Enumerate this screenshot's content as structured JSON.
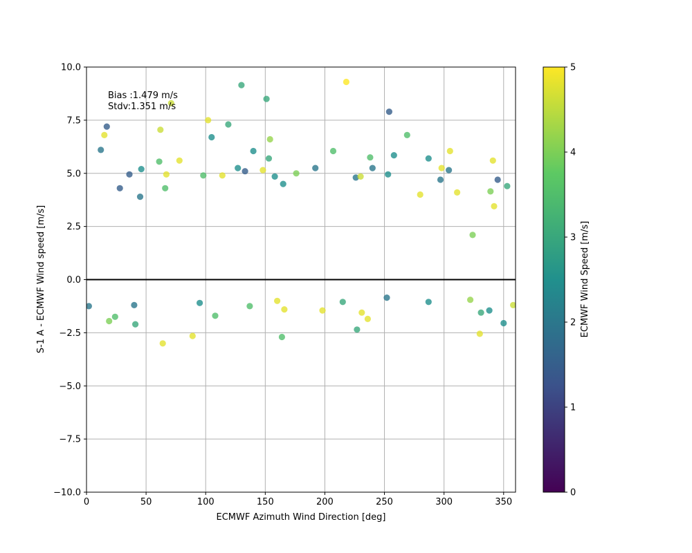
{
  "chart_data": {
    "type": "scatter",
    "title": "",
    "xlabel": "ECMWF Azimuth Wind Direction [deg]",
    "ylabel": "S-1 A - ECMWF Wind speed [m/s]",
    "xlim": [
      0,
      360
    ],
    "ylim": [
      -10,
      10
    ],
    "x_ticks": [
      "0",
      "50",
      "100",
      "150",
      "200",
      "250",
      "300",
      "350"
    ],
    "y_ticks": [
      "−10.0",
      "−7.5",
      "−5.0",
      "−2.5",
      "0.0",
      "2.5",
      "5.0",
      "7.5",
      "10.0"
    ],
    "grid": true,
    "reference_line_y": 0,
    "annotation": {
      "bias": "Bias :1.479 m/s",
      "stdv": "Stdv:1.351 m/s"
    },
    "colorbar": {
      "label": "ECMWF Wind Speed [m/s]",
      "colormap": "viridis",
      "range": [
        0,
        5
      ],
      "ticks": [
        "0",
        "1",
        "2",
        "3",
        "4",
        "5"
      ],
      "stops": [
        "#440154",
        "#3b528b",
        "#21908d",
        "#5dc963",
        "#fde725"
      ]
    },
    "points": [
      [
        130,
        9.15,
        3.0
      ],
      [
        151,
        8.5,
        3.0
      ],
      [
        218,
        9.3,
        5.0
      ],
      [
        254,
        7.9,
        1.5
      ],
      [
        71,
        8.3,
        4.6
      ],
      [
        17,
        7.2,
        1.5
      ],
      [
        12,
        6.1,
        2.0
      ],
      [
        15,
        6.8,
        4.8
      ],
      [
        62,
        7.05,
        4.6
      ],
      [
        102,
        7.5,
        4.8
      ],
      [
        119,
        7.3,
        3.0
      ],
      [
        105,
        6.7,
        2.5
      ],
      [
        154,
        6.6,
        4.2
      ],
      [
        140,
        6.05,
        2.5
      ],
      [
        207,
        6.05,
        3.5
      ],
      [
        269,
        6.8,
        3.5
      ],
      [
        258,
        5.85,
        2.5
      ],
      [
        305,
        6.05,
        4.8
      ],
      [
        287,
        5.7,
        2.5
      ],
      [
        238,
        5.75,
        3.5
      ],
      [
        153,
        5.7,
        3.0
      ],
      [
        61,
        5.55,
        3.5
      ],
      [
        78,
        5.6,
        4.8
      ],
      [
        127,
        5.25,
        2.5
      ],
      [
        133,
        5.1,
        1.5
      ],
      [
        192,
        5.25,
        2.0
      ],
      [
        240,
        5.25,
        2.0
      ],
      [
        253,
        4.95,
        2.5
      ],
      [
        298,
        5.25,
        4.8
      ],
      [
        304,
        5.15,
        2.0
      ],
      [
        341,
        5.6,
        4.8
      ],
      [
        345,
        4.7,
        1.5
      ],
      [
        353,
        4.4,
        3.0
      ],
      [
        36,
        4.95,
        1.5
      ],
      [
        46,
        5.2,
        2.5
      ],
      [
        28,
        4.3,
        1.5
      ],
      [
        45,
        3.9,
        2.0
      ],
      [
        66,
        4.3,
        3.5
      ],
      [
        67,
        4.95,
        4.8
      ],
      [
        98,
        4.9,
        3.5
      ],
      [
        114,
        4.9,
        4.8
      ],
      [
        148,
        5.15,
        4.8
      ],
      [
        158,
        4.85,
        2.5
      ],
      [
        165,
        4.5,
        2.5
      ],
      [
        176,
        5.0,
        4.0
      ],
      [
        226,
        4.8,
        2.0
      ],
      [
        230,
        4.85,
        4.6
      ],
      [
        280,
        4.0,
        4.8
      ],
      [
        297,
        4.7,
        2.0
      ],
      [
        311,
        4.1,
        4.8
      ],
      [
        324,
        2.1,
        4.0
      ],
      [
        339,
        4.15,
        4.0
      ],
      [
        342,
        3.45,
        4.8
      ],
      [
        64,
        -3.0,
        4.8
      ],
      [
        89,
        -2.65,
        4.8
      ],
      [
        164,
        -2.7,
        3.5
      ],
      [
        227,
        -2.35,
        3.0
      ],
      [
        330,
        -2.55,
        4.8
      ],
      [
        41,
        -2.1,
        3.0
      ],
      [
        19,
        -1.95,
        4.0
      ],
      [
        24,
        -1.75,
        3.5
      ],
      [
        2,
        -1.25,
        2.0
      ],
      [
        108,
        -1.7,
        3.5
      ],
      [
        166,
        -1.4,
        4.8
      ],
      [
        198,
        -1.45,
        4.8
      ],
      [
        231,
        -1.55,
        4.8
      ],
      [
        236,
        -1.85,
        4.8
      ],
      [
        350,
        -2.05,
        2.5
      ],
      [
        331,
        -1.55,
        3.0
      ],
      [
        338,
        -1.45,
        2.5
      ],
      [
        358,
        -1.2,
        4.6
      ],
      [
        287,
        -1.05,
        2.5
      ],
      [
        322,
        -0.95,
        4.2
      ],
      [
        95,
        -1.1,
        2.5
      ],
      [
        40,
        -1.2,
        2.0
      ],
      [
        137,
        -1.25,
        3.5
      ],
      [
        215,
        -1.05,
        3.0
      ],
      [
        160,
        -1.0,
        4.8
      ],
      [
        252,
        -0.85,
        2.0
      ]
    ]
  }
}
